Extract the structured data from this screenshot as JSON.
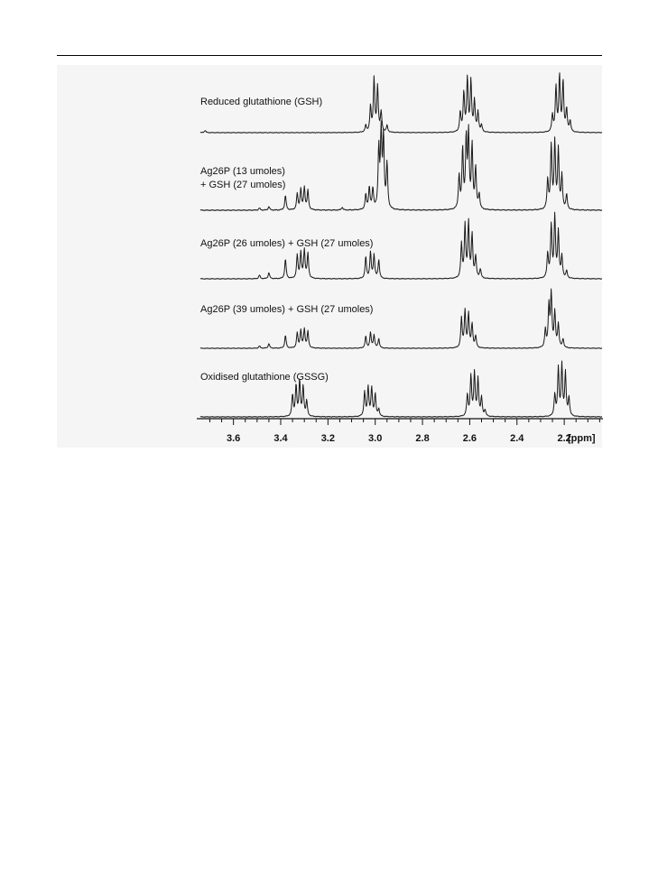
{
  "chart_data": {
    "type": "line",
    "xlabel": "[ppm]",
    "x_reversed": true,
    "xlim": [
      3.74,
      2.04
    ],
    "x_ticks": [
      3.6,
      3.4,
      3.2,
      3.0,
      2.8,
      2.6,
      2.4,
      2.2
    ],
    "minor_tick_step": 0.05,
    "grid": false,
    "series": [
      {
        "name": "Reduced glutathione (GSH)",
        "label_lines": [
          "Reduced glutathione (GSH)"
        ],
        "peaks": [
          [
            3.72,
            0.04
          ],
          [
            3.04,
            0.12
          ],
          [
            3.02,
            0.45
          ],
          [
            3.005,
            0.95
          ],
          [
            2.99,
            0.8
          ],
          [
            2.975,
            0.35
          ],
          [
            2.95,
            0.12
          ],
          [
            2.64,
            0.35
          ],
          [
            2.625,
            0.7
          ],
          [
            2.61,
            0.95
          ],
          [
            2.595,
            0.9
          ],
          [
            2.58,
            0.55
          ],
          [
            2.565,
            0.35
          ],
          [
            2.55,
            0.12
          ],
          [
            2.25,
            0.3
          ],
          [
            2.235,
            0.8
          ],
          [
            2.22,
            1.0
          ],
          [
            2.205,
            0.9
          ],
          [
            2.19,
            0.4
          ],
          [
            2.175,
            0.2
          ]
        ]
      },
      {
        "name": "Ag26P (13 umoles) + GSH (27 umoles)",
        "label_lines": [
          "Ag26P (13 umoles)",
          "+ GSH (27 umoles)"
        ],
        "peaks": [
          [
            3.49,
            0.03
          ],
          [
            3.45,
            0.05
          ],
          [
            3.38,
            0.2
          ],
          [
            3.33,
            0.22
          ],
          [
            3.315,
            0.28
          ],
          [
            3.3,
            0.3
          ],
          [
            3.285,
            0.26
          ],
          [
            3.14,
            0.04
          ],
          [
            3.04,
            0.2
          ],
          [
            3.025,
            0.3
          ],
          [
            3.01,
            0.28
          ],
          [
            2.985,
            0.8
          ],
          [
            2.975,
            1.0
          ],
          [
            2.965,
            0.95
          ],
          [
            2.95,
            0.6
          ],
          [
            2.645,
            0.45
          ],
          [
            2.63,
            0.8
          ],
          [
            2.615,
            0.92
          ],
          [
            2.605,
            1.0
          ],
          [
            2.59,
            0.85
          ],
          [
            2.575,
            0.55
          ],
          [
            2.56,
            0.2
          ],
          [
            2.27,
            0.4
          ],
          [
            2.255,
            0.85
          ],
          [
            2.24,
            0.9
          ],
          [
            2.225,
            0.8
          ],
          [
            2.21,
            0.45
          ],
          [
            2.19,
            0.2
          ]
        ]
      },
      {
        "name": "Ag26P (26 umoles) + GSH (27 umoles)",
        "label_lines": [
          "Ag26P (26 umoles) + GSH (27 umoles)"
        ],
        "peaks": [
          [
            3.49,
            0.06
          ],
          [
            3.45,
            0.1
          ],
          [
            3.38,
            0.32
          ],
          [
            3.33,
            0.38
          ],
          [
            3.315,
            0.42
          ],
          [
            3.3,
            0.46
          ],
          [
            3.285,
            0.4
          ],
          [
            3.04,
            0.35
          ],
          [
            3.02,
            0.42
          ],
          [
            3.005,
            0.38
          ],
          [
            2.985,
            0.3
          ],
          [
            2.635,
            0.55
          ],
          [
            2.62,
            0.85
          ],
          [
            2.605,
            0.9
          ],
          [
            2.59,
            0.7
          ],
          [
            2.575,
            0.35
          ],
          [
            2.555,
            0.15
          ],
          [
            2.27,
            0.4
          ],
          [
            2.255,
            0.85
          ],
          [
            2.24,
            1.0
          ],
          [
            2.225,
            0.75
          ],
          [
            2.21,
            0.35
          ],
          [
            2.19,
            0.12
          ]
        ]
      },
      {
        "name": "Ag26P (39 umoles) + GSH (27 umoles)",
        "label_lines": [
          "Ag26P (39 umoles) + GSH (27 umoles)"
        ],
        "peaks": [
          [
            3.49,
            0.04
          ],
          [
            3.45,
            0.08
          ],
          [
            3.38,
            0.22
          ],
          [
            3.33,
            0.26
          ],
          [
            3.315,
            0.3
          ],
          [
            3.3,
            0.32
          ],
          [
            3.285,
            0.28
          ],
          [
            3.04,
            0.2
          ],
          [
            3.02,
            0.26
          ],
          [
            3.005,
            0.22
          ],
          [
            2.985,
            0.16
          ],
          [
            2.635,
            0.5
          ],
          [
            2.62,
            0.62
          ],
          [
            2.605,
            0.58
          ],
          [
            2.59,
            0.4
          ],
          [
            2.575,
            0.2
          ],
          [
            2.28,
            0.3
          ],
          [
            2.265,
            0.7
          ],
          [
            2.255,
            0.9
          ],
          [
            2.24,
            0.6
          ],
          [
            2.225,
            0.4
          ],
          [
            2.205,
            0.15
          ]
        ]
      },
      {
        "name": "Oxidised glutathione (GSSG)",
        "label_lines": [
          "Oxidised glutathione (GSSG)"
        ],
        "peaks": [
          [
            3.35,
            0.35
          ],
          [
            3.335,
            0.5
          ],
          [
            3.32,
            0.58
          ],
          [
            3.305,
            0.48
          ],
          [
            3.29,
            0.25
          ],
          [
            3.045,
            0.4
          ],
          [
            3.03,
            0.48
          ],
          [
            3.015,
            0.46
          ],
          [
            3.0,
            0.36
          ],
          [
            2.985,
            0.12
          ],
          [
            2.61,
            0.35
          ],
          [
            2.595,
            0.65
          ],
          [
            2.58,
            0.7
          ],
          [
            2.565,
            0.6
          ],
          [
            2.55,
            0.3
          ],
          [
            2.535,
            0.1
          ],
          [
            2.24,
            0.35
          ],
          [
            2.225,
            0.78
          ],
          [
            2.21,
            0.82
          ],
          [
            2.195,
            0.7
          ],
          [
            2.18,
            0.3
          ]
        ]
      }
    ]
  }
}
